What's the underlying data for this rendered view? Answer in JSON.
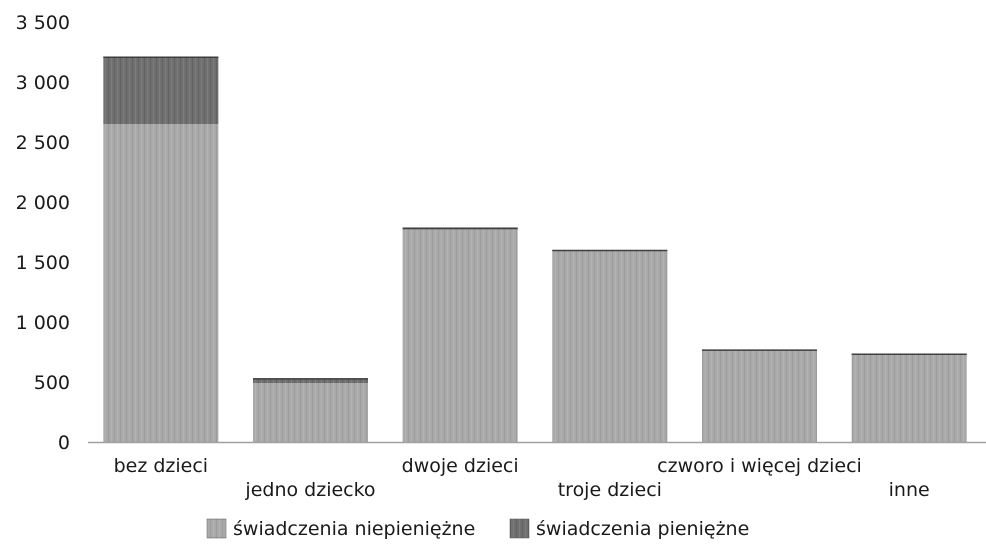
{
  "chart_data": {
    "type": "bar",
    "stacked": true,
    "title": "",
    "xlabel": "",
    "ylabel": "",
    "ylim": [
      0,
      3500
    ],
    "y_ticks": [
      0,
      500,
      1000,
      1500,
      2000,
      2500,
      3000,
      3500
    ],
    "y_tick_labels": [
      "0",
      "500",
      "1 000",
      "1 500",
      "2 000",
      "2 500",
      "3 000",
      "3 500"
    ],
    "categories": [
      "bez dzieci",
      "jedno dziecko",
      "dwoje dzieci",
      "troje dzieci",
      "czworo i więcej dzieci",
      "inne"
    ],
    "series": [
      {
        "name": "świadczenia niepieniężne",
        "color": "#a8a8a8",
        "values": [
          2650,
          490,
          1770,
          1590,
          760,
          725
        ]
      },
      {
        "name": "świadczenia pieniężne",
        "color": "#6e6e6e",
        "values": [
          560,
          40,
          15,
          10,
          10,
          10
        ]
      }
    ],
    "legend_position": "bottom-center",
    "grid": false
  }
}
